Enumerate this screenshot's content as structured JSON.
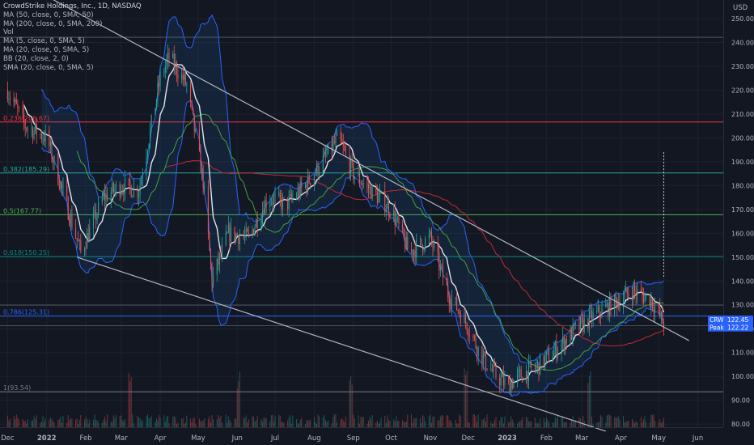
{
  "legend": {
    "title": "CrowdStrike Holdings, Inc., 1D, NASDAQ",
    "indicators": [
      "MA (50, close, 0, SMA, 50)",
      "MA (200, close, 0, SMA, 200)",
      "Vol",
      "MA (5, close, 0, SMA, 5)",
      "MA (20, close, 0, SMA, 5)",
      "BB (20, close, 2, 0)",
      "SMA (20, close, 0, SMA, 5)"
    ]
  },
  "chart_data": {
    "type": "line",
    "currency": "USD",
    "ylim": [
      78,
      258
    ],
    "y_ticks": [
      "250.00",
      "240.00",
      "230.00",
      "220.00",
      "210.00",
      "200.00",
      "190.00",
      "180.00",
      "170.00",
      "160.00",
      "150.00",
      "140.00",
      "130.00",
      "120.00",
      "110.00",
      "100.00",
      "90.00",
      "80.00"
    ],
    "y_tick_values": [
      250,
      240,
      230,
      220,
      210,
      200,
      190,
      180,
      170,
      160,
      150,
      140,
      130,
      120,
      110,
      100,
      90,
      80
    ],
    "x_ticks": [
      "Dec",
      "2022",
      "Feb",
      "Mar",
      "Apr",
      "May",
      "Jun",
      "Jul",
      "Aug",
      "Sep",
      "Oct",
      "Nov",
      "Dec",
      "2023",
      "Feb",
      "Mar",
      "Apr",
      "May",
      "Jun"
    ],
    "x_tick_values": [
      "2021-12",
      "2022-01",
      "2022-02",
      "2022-03",
      "2022-04",
      "2022-05",
      "2022-06",
      "2022-07",
      "2022-08",
      "2022-09",
      "2022-10",
      "2022-11",
      "2022-12",
      "2023-01",
      "2023-02",
      "2023-03",
      "2023-04",
      "2023-05",
      "2023-06"
    ],
    "price_series": {
      "name": "CRWD",
      "x": [
        "2021-12-01",
        "2021-12-15",
        "2022-01-01",
        "2022-01-15",
        "2022-01-28",
        "2022-02-15",
        "2022-03-01",
        "2022-03-15",
        "2022-04-01",
        "2022-04-08",
        "2022-04-22",
        "2022-05-05",
        "2022-05-12",
        "2022-05-25",
        "2022-06-10",
        "2022-06-25",
        "2022-07-10",
        "2022-07-25",
        "2022-08-10",
        "2022-08-20",
        "2022-09-01",
        "2022-09-15",
        "2022-10-01",
        "2022-10-15",
        "2022-11-01",
        "2022-11-15",
        "2022-11-30",
        "2022-12-10",
        "2022-12-20",
        "2023-01-01",
        "2023-01-10",
        "2023-01-25",
        "2023-02-10",
        "2023-02-25",
        "2023-03-10",
        "2023-03-25",
        "2023-04-10",
        "2023-04-25",
        "2023-05-05"
      ],
      "values": [
        220,
        205,
        200,
        175,
        152,
        175,
        180,
        178,
        225,
        234,
        222,
        182,
        140,
        160,
        158,
        175,
        172,
        180,
        192,
        200,
        185,
        178,
        170,
        152,
        158,
        135,
        122,
        110,
        102,
        96,
        100,
        104,
        112,
        120,
        125,
        130,
        136,
        132,
        122
      ]
    },
    "ma5": {
      "x": [],
      "values": []
    },
    "fib_levels": [
      {
        "label": "0.236(206.67)",
        "value": 206.67,
        "color": "#f23645"
      },
      {
        "label": "0.382(185.29)",
        "value": 185.29,
        "color": "#26a69a"
      },
      {
        "label": "0.5(167.77)",
        "value": 167.77,
        "color": "#4caf50"
      },
      {
        "label": "0.618(150.25)",
        "value": 150.25,
        "color": "#00897b"
      },
      {
        "label": "0.786(125.31)",
        "value": 125.31,
        "color": "#2962ff"
      },
      {
        "label": "1(93.54)",
        "value": 93.54,
        "color": "#787b86"
      }
    ],
    "extra_levels": [
      242.2,
      129.9,
      121.3
    ],
    "channel": {
      "upper": {
        "from": [
          "2022-01-06",
          258
        ],
        "to": [
          "2023-05-25",
          115
        ]
      },
      "lower": {
        "from": [
          "2022-01-25",
          150
        ],
        "to": [
          "2023-03-20",
          77
        ]
      }
    },
    "price_labels": [
      {
        "name": "CRWD",
        "value": 122.45,
        "text": "122.45"
      },
      {
        "name": "Peak",
        "value": 122.22,
        "text": "122.22"
      }
    ],
    "volume_events": [
      "2022-03-08",
      "2022-06-02",
      "2022-08-30",
      "2022-11-29",
      "2023-03-07"
    ]
  }
}
